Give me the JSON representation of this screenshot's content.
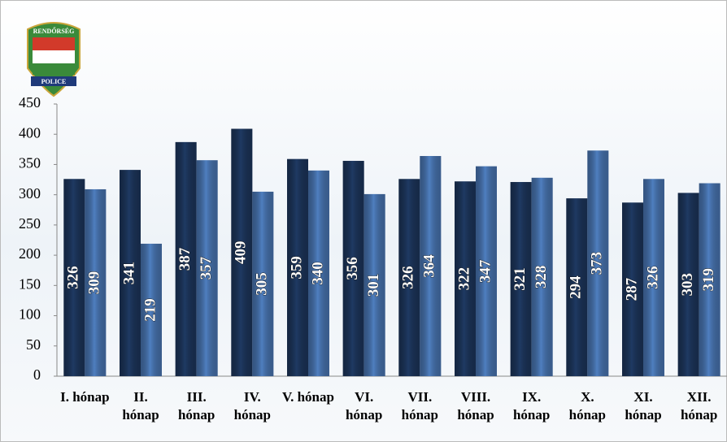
{
  "chart_data": {
    "type": "bar",
    "logo": {
      "top": "RENDŐRSÉG",
      "bottom": "POLICE"
    },
    "categories": [
      "I. hónap",
      "II. hónap",
      "III. hónap",
      "IV. hónap",
      "V. hónap",
      "VI. hónap",
      "VII. hónap",
      "VIII. hónap",
      "IX. hónap",
      "X. hónap",
      "XI. hónap",
      "XII. hónap"
    ],
    "series": [
      {
        "color": "#1f3a63",
        "values": [
          326,
          341,
          387,
          409,
          359,
          356,
          326,
          322,
          321,
          294,
          287,
          303
        ]
      },
      {
        "color": "#4f7fc0",
        "values": [
          309,
          219,
          357,
          305,
          340,
          301,
          364,
          347,
          328,
          373,
          326,
          319
        ]
      }
    ],
    "ylim": [
      0,
      450
    ],
    "yticks": [
      0,
      50,
      100,
      150,
      200,
      250,
      300,
      350,
      400,
      450
    ]
  }
}
